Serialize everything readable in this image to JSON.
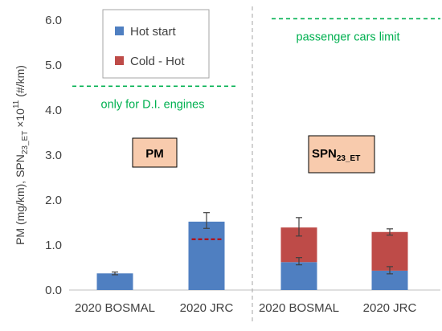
{
  "chart_data": {
    "type": "bar",
    "stacked": true,
    "categories": [
      "2020 BOSMAL",
      "2020 JRC",
      "2020 BOSMAL",
      "2020 JRC"
    ],
    "groups": [
      {
        "label": "PM",
        "label_sub": "",
        "categories": [
          0,
          1
        ]
      },
      {
        "label": "SPN",
        "label_sub": "23_ET",
        "categories": [
          2,
          3
        ]
      }
    ],
    "series": [
      {
        "name": "Hot start",
        "color": "#4f7fc1",
        "values": [
          0.37,
          1.52,
          0.62,
          0.43
        ],
        "err_low": [
          0.34,
          1.37,
          0.56,
          0.36
        ],
        "err_high": [
          0.4,
          1.72,
          0.72,
          0.52
        ]
      },
      {
        "name": "Cold - Hot",
        "color": "#be4b48",
        "values": [
          0,
          0,
          0.77,
          0.86
        ],
        "err_low": [
          null,
          null,
          1.2,
          1.22
        ],
        "err_high": [
          null,
          null,
          1.61,
          1.36
        ]
      }
    ],
    "pm_inner_line": {
      "category": 1,
      "value": 1.13,
      "color": "#c00000"
    },
    "ylabel": {
      "main": "PM (mg/km), SPN",
      "sub": "23_ET",
      "mult": " ×10",
      "sup": "11",
      "tail": " (#/km)"
    },
    "ylim": [
      0,
      6.0
    ],
    "yticks": [
      "0.0",
      "1.0",
      "2.0",
      "3.0",
      "4.0",
      "5.0",
      "6.0"
    ],
    "grid": false,
    "legend": "top-left inside",
    "limits": [
      {
        "value": 4.53,
        "label": "only for D.I. engines",
        "color": "#00b050",
        "span": "left"
      },
      {
        "value": 6.03,
        "label": "passenger cars limit",
        "color": "#00b050",
        "span": "right"
      }
    ],
    "divider_color": "#a6a6a6",
    "label_box_color": "#f8cbad"
  }
}
